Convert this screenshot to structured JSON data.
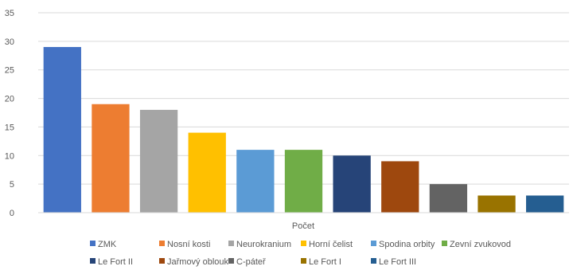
{
  "chart_data": {
    "type": "bar",
    "xlabel": "Počet",
    "ylim": [
      0,
      35
    ],
    "yticks": [
      0,
      5,
      10,
      15,
      20,
      25,
      30,
      35
    ],
    "grid": true,
    "legend_position": "bottom",
    "categories": [
      "ZMK",
      "Nosní kosti",
      "Neurokranium",
      "Horní čelist",
      "Spodina orbity",
      "Zevní zvukovod",
      "Le Fort II",
      "Jařmový oblouk",
      "C-páteř",
      "Le Fort I",
      "Le Fort III"
    ],
    "values": [
      29,
      19,
      18,
      14,
      11,
      11,
      10,
      9,
      5,
      3,
      3
    ],
    "colors": [
      "#4472C4",
      "#ED7D31",
      "#A5A5A5",
      "#FFC000",
      "#5B9BD5",
      "#70AD47",
      "#264478",
      "#9E480E",
      "#636363",
      "#997300",
      "#255E91"
    ]
  }
}
